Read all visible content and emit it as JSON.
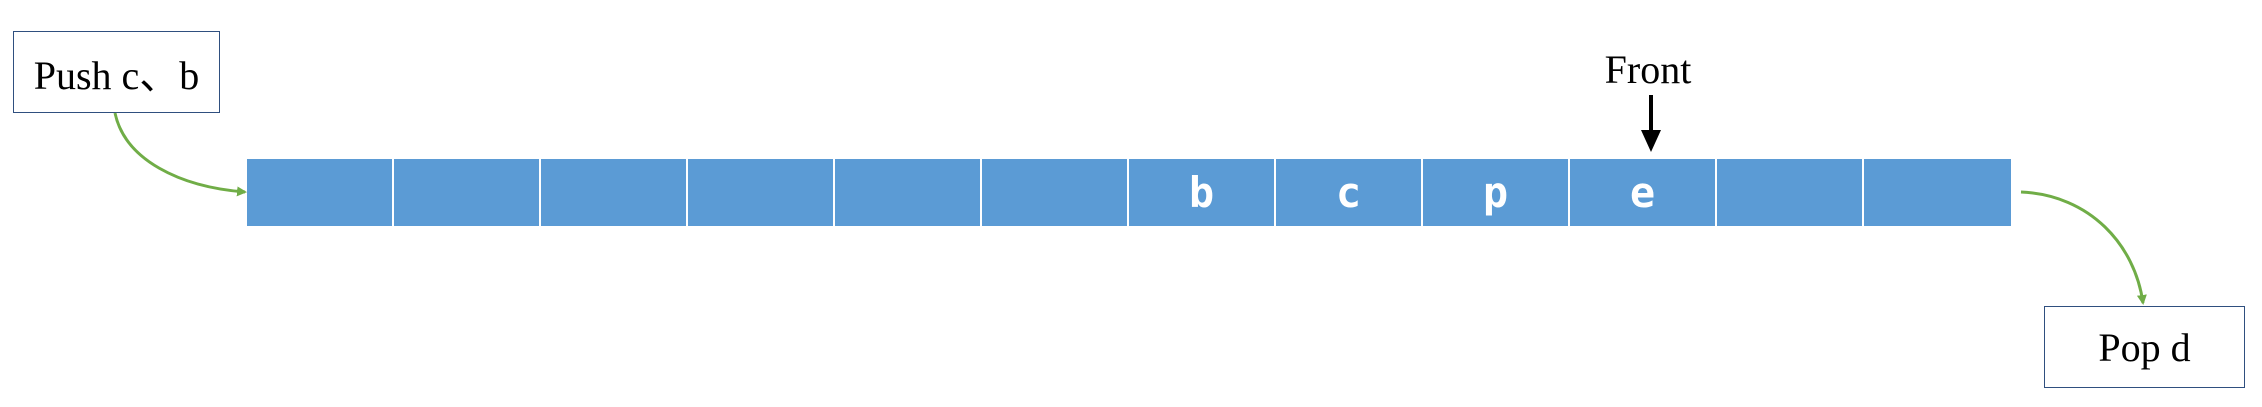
{
  "push_label": "Push c、b",
  "pop_label": "Pop d",
  "front_label": "Front",
  "queue_cells": [
    "",
    "",
    "",
    "",
    "",
    "",
    "b",
    "c",
    "p",
    "e",
    "",
    ""
  ],
  "colors": {
    "cell_fill": "#5b9bd5",
    "cell_text": "#ffffff",
    "arrow_green": "#70ad47",
    "front_arrow": "#000000",
    "box_border": "#2f4f7f"
  }
}
